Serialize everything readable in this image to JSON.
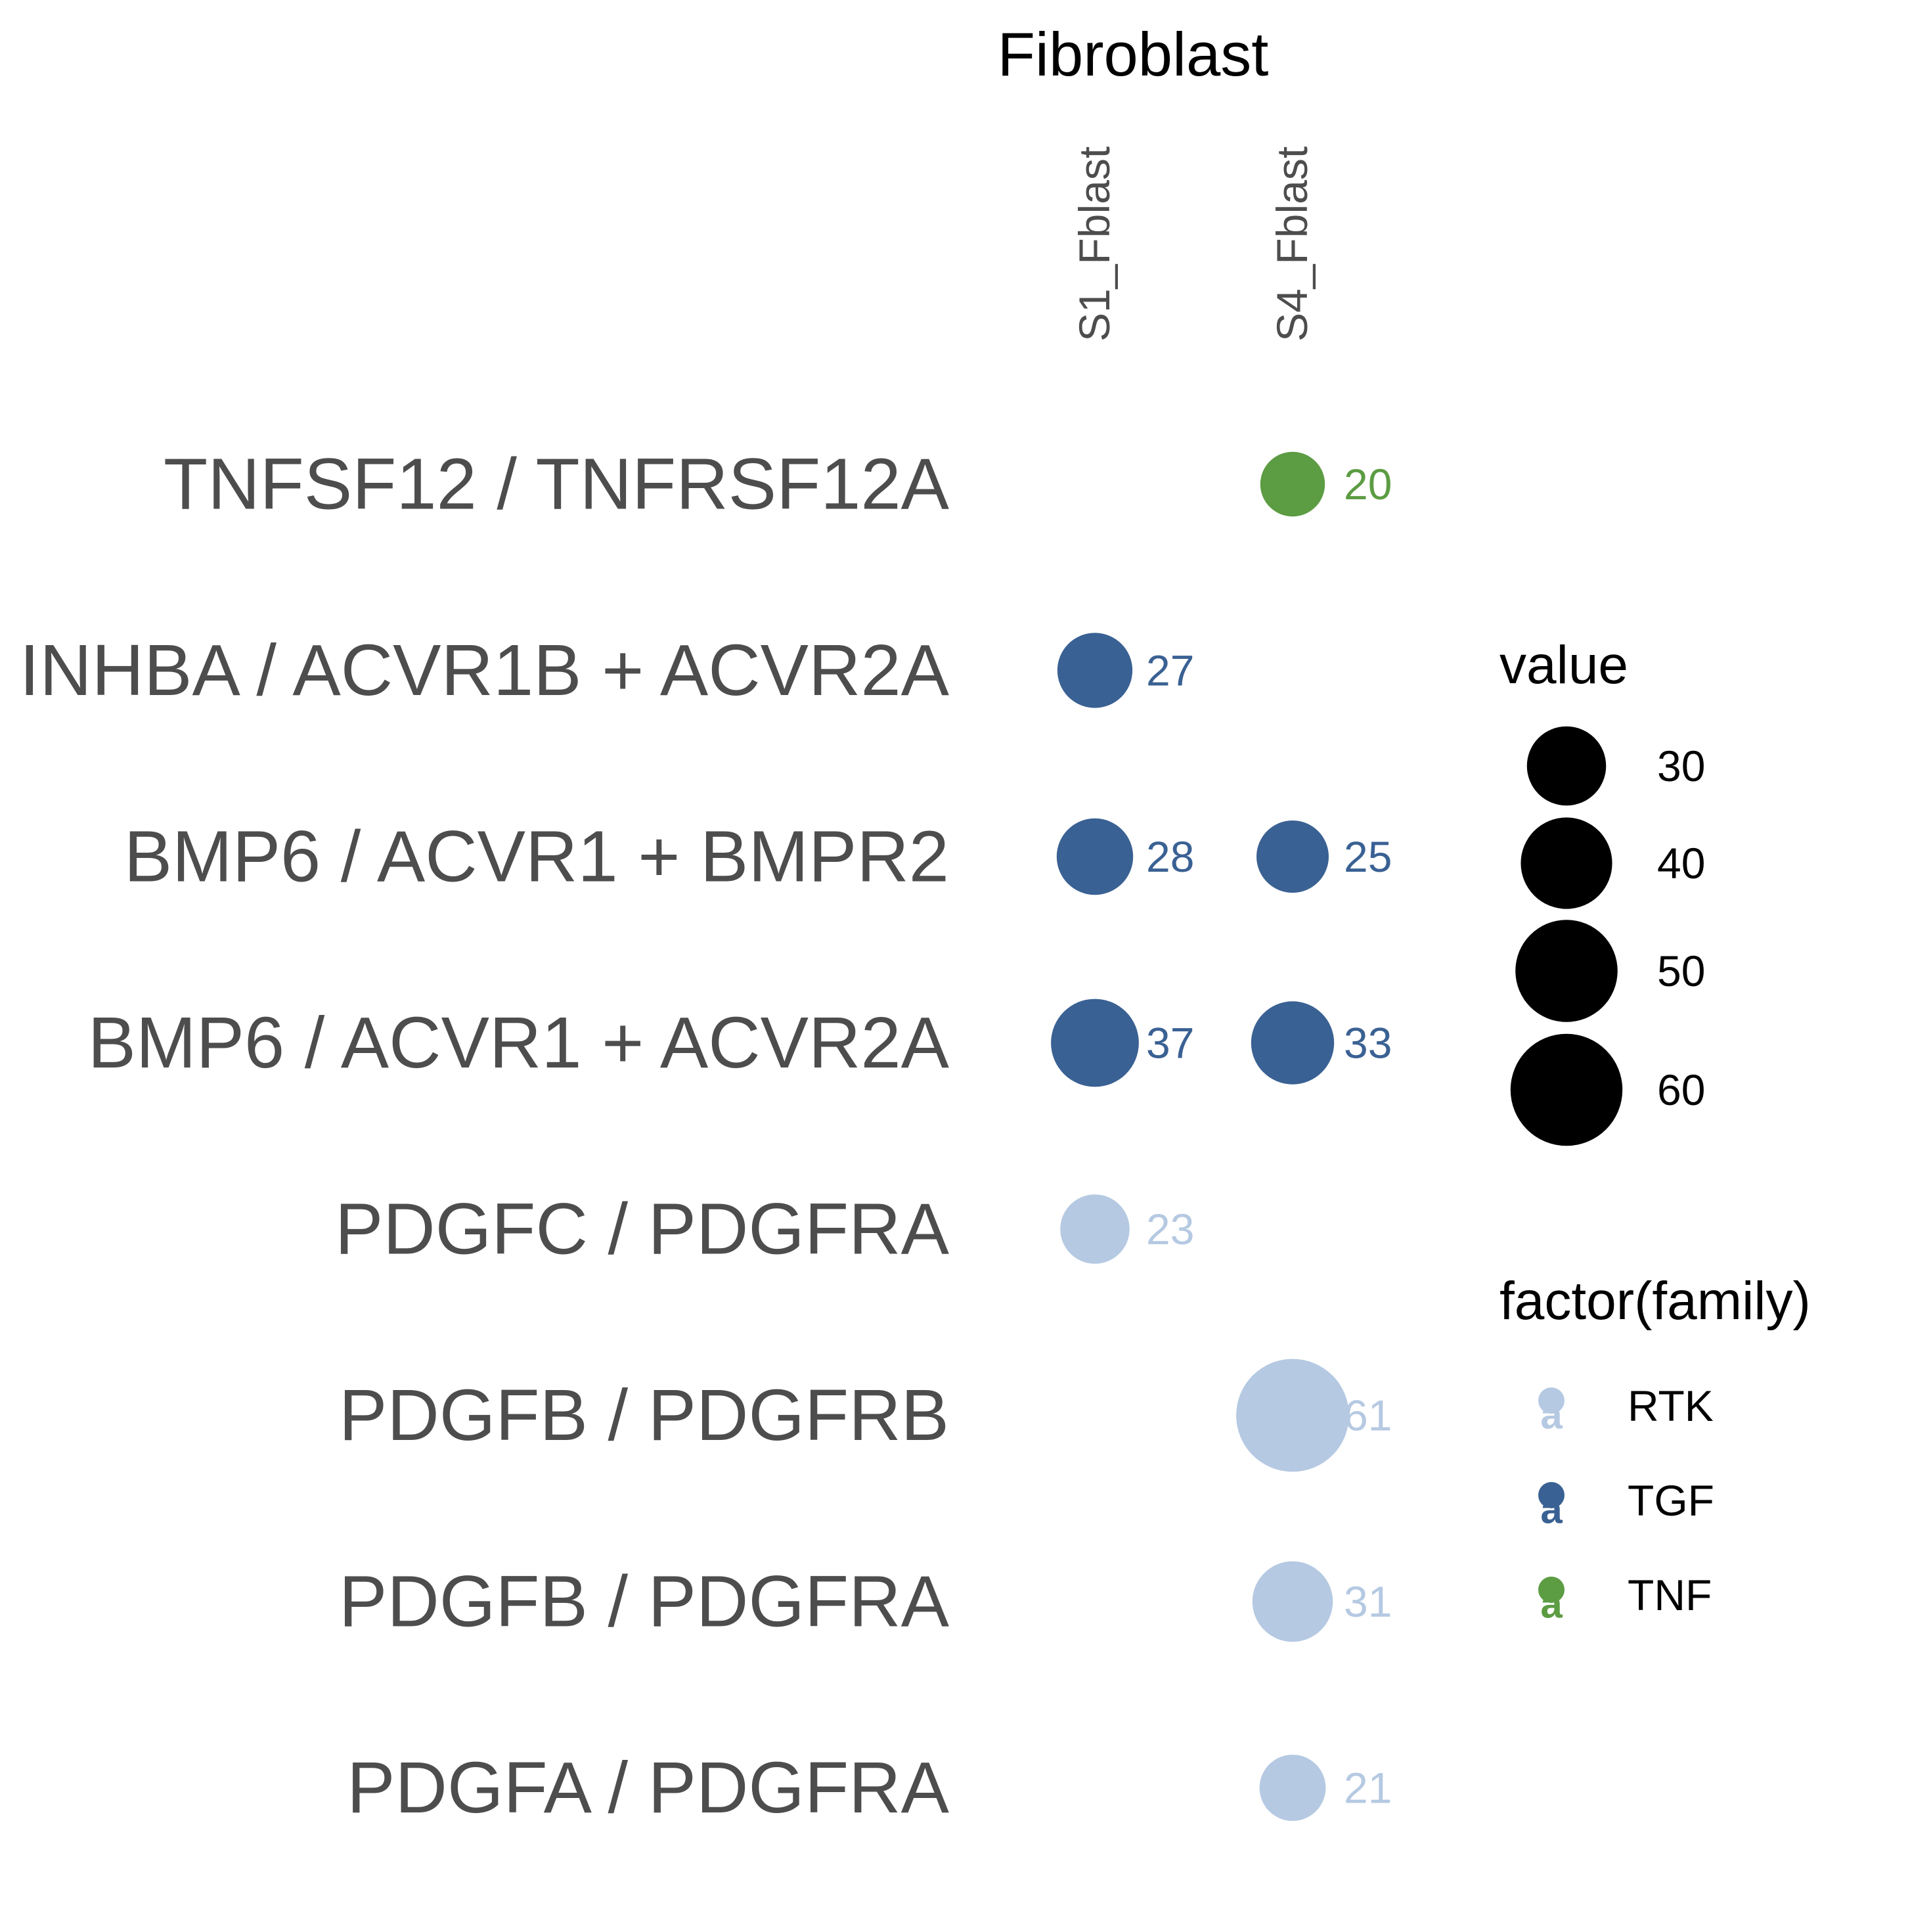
{
  "chart_data": {
    "type": "scatter",
    "title": "Fibroblast",
    "columns": [
      "S1_Fblast",
      "S4_Fblast"
    ],
    "rows": [
      "TNFSF12 / TNFRSF12A",
      "INHBA / ACVR1B + ACVR2A",
      "BMP6 / ACVR1 + BMPR2",
      "BMP6 / ACVR1 + ACVR2A",
      "PDGFC / PDGFRA",
      "PDGFB / PDGFRB",
      "PDGFB / PDGFRA",
      "PDGFA / PDGFRA"
    ],
    "points": [
      {
        "row": "TNFSF12 / TNFRSF12A",
        "column": "S4_Fblast",
        "value": 20,
        "label": "20",
        "family": "TNF"
      },
      {
        "row": "INHBA / ACVR1B + ACVR2A",
        "column": "S1_Fblast",
        "value": 27,
        "label": "27",
        "family": "TGF"
      },
      {
        "row": "BMP6 / ACVR1 + BMPR2",
        "column": "S1_Fblast",
        "value": 28,
        "label": "28",
        "family": "TGF"
      },
      {
        "row": "BMP6 / ACVR1 + BMPR2",
        "column": "S4_Fblast",
        "value": 25,
        "label": "25",
        "family": "TGF"
      },
      {
        "row": "BMP6 / ACVR1 + ACVR2A",
        "column": "S1_Fblast",
        "value": 37,
        "label": "37",
        "family": "TGF"
      },
      {
        "row": "BMP6 / ACVR1 + ACVR2A",
        "column": "S4_Fblast",
        "value": 33,
        "label": "33",
        "family": "TGF"
      },
      {
        "row": "PDGFC / PDGFRA",
        "column": "S1_Fblast",
        "value": 23,
        "label": "23",
        "family": "RTK"
      },
      {
        "row": "PDGFB / PDGFRB",
        "column": "S4_Fblast",
        "value": 61,
        "label": "61",
        "family": "RTK"
      },
      {
        "row": "PDGFB / PDGFRA",
        "column": "S4_Fblast",
        "value": 31,
        "label": "31",
        "family": "RTK"
      },
      {
        "row": "PDGFA / PDGFRA",
        "column": "S4_Fblast",
        "value": 21,
        "label": "21",
        "family": "RTK"
      }
    ],
    "legend": {
      "size": {
        "title": "value",
        "entries": [
          {
            "label": "30",
            "value": 30
          },
          {
            "label": "40",
            "value": 40
          },
          {
            "label": "50",
            "value": 50
          },
          {
            "label": "60",
            "value": 60
          }
        ]
      },
      "color": {
        "title": "factor(family)",
        "entries": [
          {
            "label": "RTK",
            "glyph": "a",
            "color": "#b5c9e2"
          },
          {
            "label": "TGF",
            "glyph": "a",
            "color": "#3a6193"
          },
          {
            "label": "TNF",
            "glyph": "a",
            "color": "#5c9c43"
          }
        ]
      },
      "placement": "right"
    },
    "grid": false
  }
}
